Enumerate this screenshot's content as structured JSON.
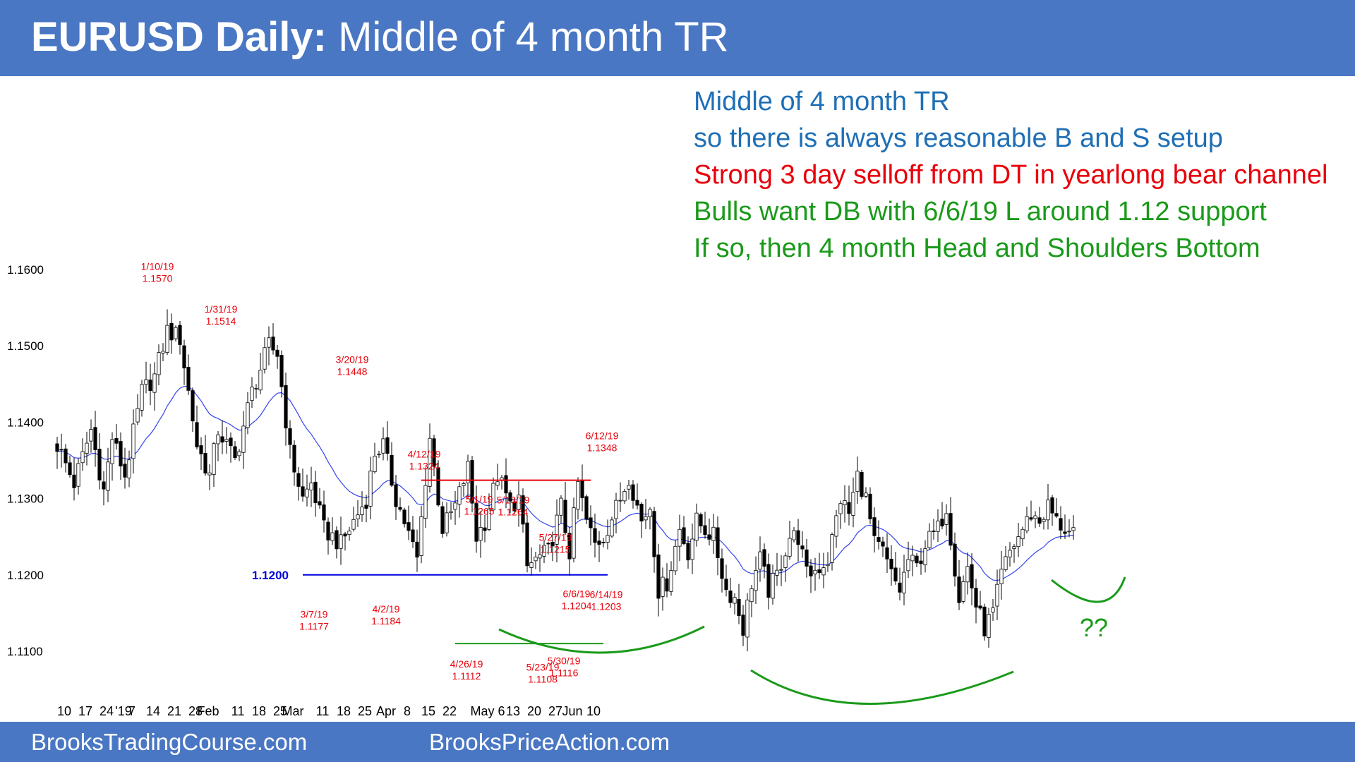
{
  "header": {
    "title_bold": "EURUSD Daily:",
    "title_rest": "Middle of 4 month TR"
  },
  "footer": {
    "left": "BrooksTradingCourse.com",
    "center": "BrooksPriceAction.com"
  },
  "notes": [
    {
      "text": "Middle of 4 month TR",
      "color": "#1f6fb5"
    },
    {
      "text": "so there is always reasonable B and S setup",
      "color": "#1f6fb5"
    },
    {
      "text": "Strong 3 day selloff from DT in yearlong bear channel",
      "color": "#e8000b"
    },
    {
      "text": "Bulls want DB with 6/6/19 L around 1.12 support",
      "color": "#1a9a1a"
    },
    {
      "text": "If so, then 4 month Head and Shoulders Bottom",
      "color": "#1a9a1a"
    }
  ],
  "chart_data": {
    "type": "candlestick",
    "instrument": "EURUSD",
    "timeframe": "Daily",
    "ylim": [
      1.104,
      1.164
    ],
    "y_ticks": [
      "1.1600",
      "1.1500",
      "1.1400",
      "1.1300",
      "1.1200",
      "1.1100"
    ],
    "x_ticks": [
      {
        "label": "10",
        "bar": 1
      },
      {
        "label": "17",
        "bar": 6
      },
      {
        "label": "24",
        "bar": 11
      },
      {
        "label": "'19",
        "bar": 15
      },
      {
        "label": "7",
        "bar": 17
      },
      {
        "label": "14",
        "bar": 22
      },
      {
        "label": "21",
        "bar": 27
      },
      {
        "label": "28",
        "bar": 32
      },
      {
        "label": "Feb",
        "bar": 35
      },
      {
        "label": "11",
        "bar": 42
      },
      {
        "label": "18",
        "bar": 47
      },
      {
        "label": "25",
        "bar": 52
      },
      {
        "label": "Mar",
        "bar": 55
      },
      {
        "label": "11",
        "bar": 62
      },
      {
        "label": "18",
        "bar": 67
      },
      {
        "label": "25",
        "bar": 72
      },
      {
        "label": "Apr",
        "bar": 77
      },
      {
        "label": "8",
        "bar": 82
      },
      {
        "label": "15",
        "bar": 87
      },
      {
        "label": "22",
        "bar": 92
      },
      {
        "label": "May 6",
        "bar": 101
      },
      {
        "label": "13",
        "bar": 107
      },
      {
        "label": "20",
        "bar": 112
      },
      {
        "label": "27",
        "bar": 117
      },
      {
        "label": "Jun",
        "bar": 121
      },
      {
        "label": "10",
        "bar": 126
      }
    ],
    "anchors": [
      [
        0,
        1.137
      ],
      [
        4,
        1.132
      ],
      [
        8,
        1.139
      ],
      [
        11,
        1.131
      ],
      [
        13,
        1.138
      ],
      [
        16,
        1.133
      ],
      [
        20,
        1.144
      ],
      [
        23,
        1.146
      ],
      [
        26,
        1.152
      ],
      [
        29,
        1.151
      ],
      [
        33,
        1.137
      ],
      [
        36,
        1.133
      ],
      [
        38,
        1.139
      ],
      [
        42,
        1.135
      ],
      [
        46,
        1.144
      ],
      [
        50,
        1.15
      ],
      [
        52,
        1.149
      ],
      [
        55,
        1.136
      ],
      [
        58,
        1.13
      ],
      [
        60,
        1.132
      ],
      [
        63,
        1.126
      ],
      [
        67,
        1.124
      ],
      [
        70,
        1.127
      ],
      [
        73,
        1.13
      ],
      [
        75,
        1.136
      ],
      [
        77,
        1.137
      ],
      [
        80,
        1.13
      ],
      [
        82,
        1.127
      ],
      [
        85,
        1.122
      ],
      [
        88,
        1.138
      ],
      [
        91,
        1.126
      ],
      [
        94,
        1.129
      ],
      [
        97,
        1.134
      ],
      [
        99,
        1.125
      ],
      [
        101,
        1.127
      ],
      [
        104,
        1.133
      ],
      [
        107,
        1.129
      ],
      [
        109,
        1.13
      ],
      [
        111,
        1.121
      ],
      [
        113,
        1.122
      ],
      [
        116,
        1.123
      ],
      [
        119,
        1.129
      ],
      [
        121,
        1.123
      ],
      [
        123,
        1.132
      ],
      [
        125,
        1.127
      ],
      [
        127,
        1.124
      ],
      [
        129,
        1.125
      ],
      [
        133,
        1.13
      ],
      [
        135,
        1.133
      ],
      [
        138,
        1.127
      ],
      [
        140,
        1.129
      ],
      [
        142,
        1.118
      ],
      [
        144,
        1.119
      ],
      [
        147,
        1.126
      ],
      [
        149,
        1.123
      ],
      [
        151,
        1.127
      ],
      [
        155,
        1.125
      ],
      [
        158,
        1.118
      ],
      [
        160,
        1.117
      ],
      [
        162,
        1.113
      ],
      [
        164,
        1.119
      ],
      [
        166,
        1.122
      ],
      [
        168,
        1.118
      ],
      [
        170,
        1.12
      ],
      [
        173,
        1.125
      ],
      [
        175,
        1.125
      ],
      [
        177,
        1.12
      ],
      [
        180,
        1.121
      ],
      [
        182,
        1.122
      ],
      [
        185,
        1.13
      ],
      [
        187,
        1.128
      ],
      [
        189,
        1.133
      ],
      [
        191,
        1.13
      ],
      [
        193,
        1.124
      ],
      [
        195,
        1.123
      ],
      [
        197,
        1.12
      ],
      [
        199,
        1.118
      ],
      [
        201,
        1.122
      ],
      [
        203,
        1.121
      ],
      [
        205,
        1.124
      ],
      [
        208,
        1.126
      ],
      [
        210,
        1.129
      ],
      [
        213,
        1.117
      ],
      [
        215,
        1.121
      ],
      [
        217,
        1.116
      ],
      [
        219,
        1.113
      ],
      [
        221,
        1.115
      ],
      [
        223,
        1.12
      ],
      [
        225,
        1.123
      ],
      [
        228,
        1.126
      ],
      [
        230,
        1.128
      ],
      [
        232,
        1.127
      ],
      [
        234,
        1.129
      ],
      [
        236,
        1.127
      ],
      [
        240,
        1.125
      ]
    ],
    "candles": [],
    "horizontal_lines": [
      {
        "name": "support-1200",
        "y": 1.12,
        "label": "1.1200",
        "color": "#0000dd",
        "from_bar": 58,
        "to_bar": 130
      },
      {
        "name": "resistance-1324",
        "y": 1.1324,
        "color": "#e8000b",
        "from_bar": 86,
        "to_bar": 126
      },
      {
        "name": "support-1110",
        "y": 1.111,
        "color": "#1a9a1a",
        "from_bar": 94,
        "to_bar": 129
      }
    ],
    "annotations": [
      {
        "date": "1/10/19",
        "price": "1.1570",
        "bar": 23,
        "y": 1.157,
        "pos": "above",
        "color": "#e8000b"
      },
      {
        "date": "1/31/19",
        "price": "1.1514",
        "bar": 38,
        "y": 1.1514,
        "pos": "above",
        "color": "#e8000b"
      },
      {
        "date": "3/20/19",
        "price": "1.1448",
        "bar": 69,
        "y": 1.1448,
        "pos": "above",
        "color": "#e8000b"
      },
      {
        "date": "4/12/19",
        "price": "1.1324",
        "bar": 86,
        "y": 1.1324,
        "pos": "above",
        "color": "#e8000b"
      },
      {
        "date": "5/1/19",
        "price": "1.1265",
        "bar": 99,
        "y": 1.1265,
        "pos": "above",
        "color": "#e8000b"
      },
      {
        "date": "5/13/19",
        "price": "1.1264",
        "bar": 107,
        "y": 1.1264,
        "pos": "above",
        "color": "#e8000b"
      },
      {
        "date": "5/27/19",
        "price": "1.1215",
        "bar": 117,
        "y": 1.1215,
        "pos": "above",
        "color": "#e8000b"
      },
      {
        "date": "6/12/19",
        "price": "1.1348",
        "bar": 128,
        "y": 1.1348,
        "pos": "above",
        "color": "#e8000b"
      },
      {
        "date": "3/7/19",
        "price": "1.1177",
        "bar": 60,
        "y": 1.1177,
        "pos": "below",
        "color": "#e8000b"
      },
      {
        "date": "4/2/19",
        "price": "1.1184",
        "bar": 77,
        "y": 1.1184,
        "pos": "below",
        "color": "#e8000b"
      },
      {
        "date": "4/26/19",
        "price": "1.1112",
        "bar": 96,
        "y": 1.1112,
        "pos": "below",
        "color": "#e8000b"
      },
      {
        "date": "5/23/19",
        "price": "1.1108",
        "bar": 114,
        "y": 1.1108,
        "pos": "below",
        "color": "#e8000b"
      },
      {
        "date": "5/30/19",
        "price": "1.1116",
        "bar": 119,
        "y": 1.1116,
        "pos": "below",
        "color": "#e8000b"
      },
      {
        "date": "6/6/19",
        "price": "1.1204",
        "bar": 122,
        "y": 1.1204,
        "pos": "below",
        "color": "#e8000b"
      },
      {
        "date": "6/14/19",
        "price": "1.1203",
        "bar": 129,
        "y": 1.1203,
        "pos": "below",
        "color": "#e8000b"
      }
    ],
    "question_mark": {
      "text": "??",
      "color": "#1a9a1a"
    },
    "colors": {
      "up": "#ffffff",
      "down": "#000000",
      "ema": "#3344ee"
    }
  }
}
